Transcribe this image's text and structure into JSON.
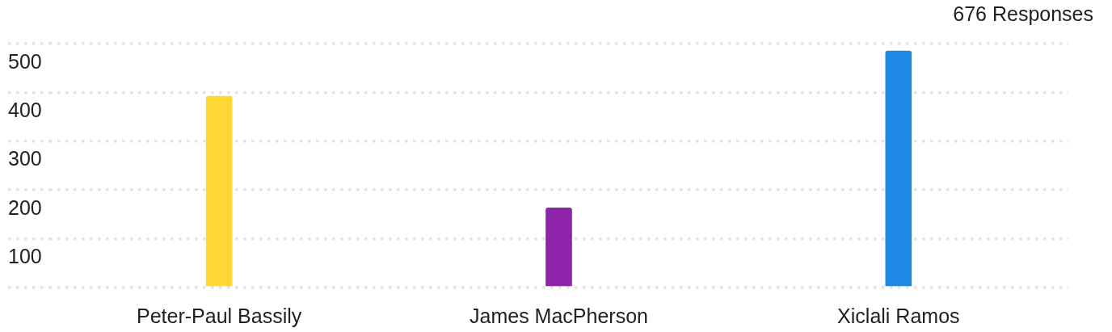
{
  "chart_data": {
    "type": "bar",
    "title": "676 Responses",
    "categories": [
      "Peter-Paul Bassily",
      "James MacPherson",
      "Xiclali Ramos"
    ],
    "values": [
      392,
      163,
      485
    ],
    "colors": [
      "#fdd835",
      "#8e24aa",
      "#1e88e5"
    ],
    "ylim": [
      0,
      500
    ],
    "yticks": [
      {
        "value": 0,
        "label": null
      },
      100,
      200,
      300,
      400,
      500
    ],
    "grid": "y"
  }
}
